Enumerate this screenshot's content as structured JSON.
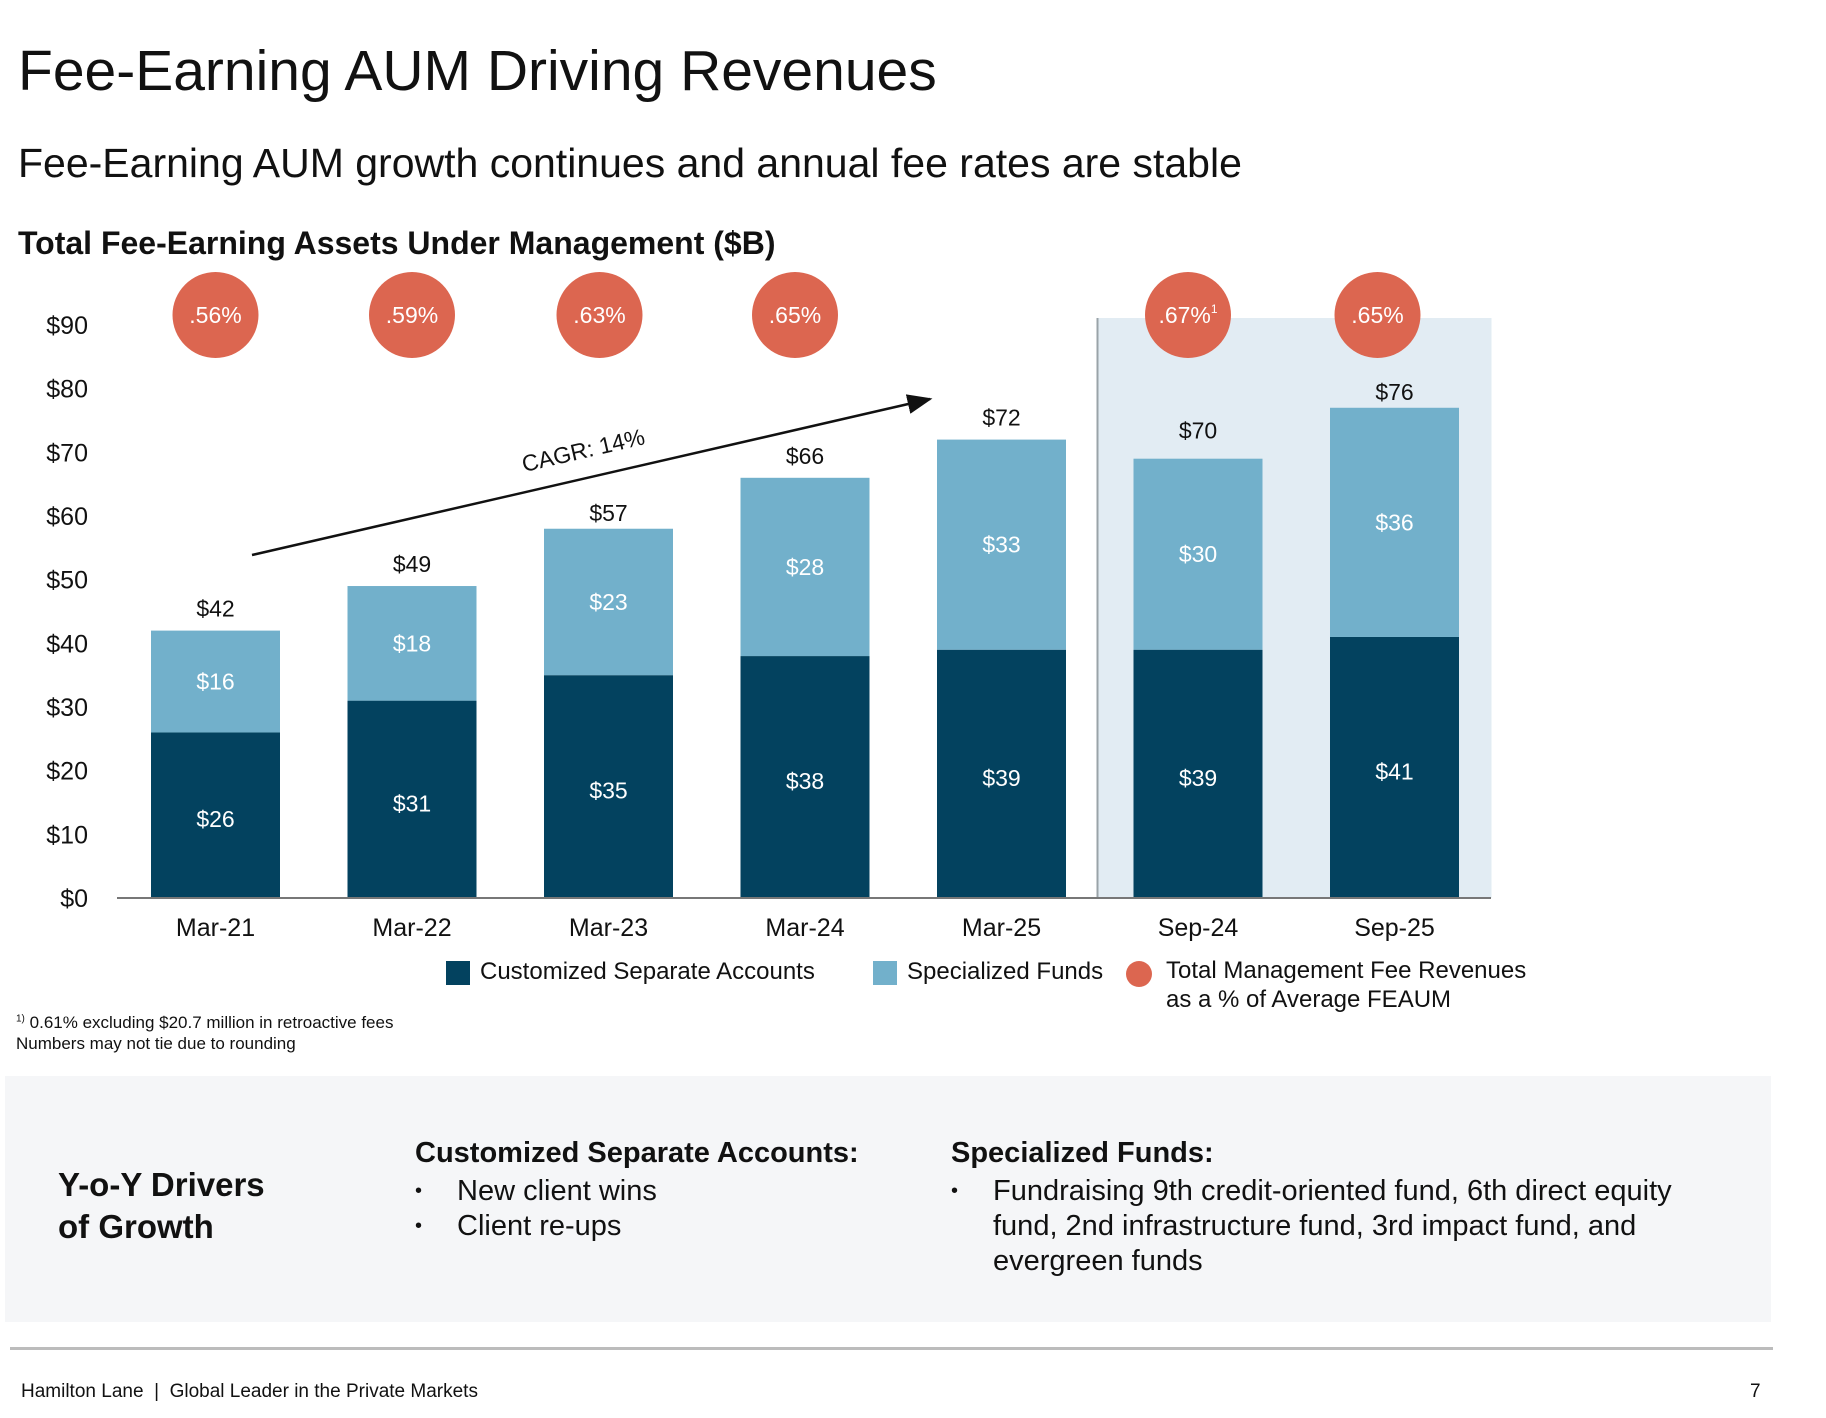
{
  "title": "Fee-Earning AUM Driving Revenues",
  "subtitle": "Fee-Earning AUM growth continues and annual fee rates are stable",
  "chart_data": {
    "type": "bar",
    "title": "Total Fee-Earning Assets Under Management ($B)",
    "categories": [
      "Mar-21",
      "Mar-22",
      "Mar-23",
      "Mar-24",
      "Mar-25",
      "Sep-24",
      "Sep-25"
    ],
    "series": [
      {
        "name": "Customized Separate Accounts",
        "color": "#03425f",
        "values": [
          26,
          31,
          35,
          38,
          39,
          39,
          41
        ],
        "labels": [
          "$26",
          "$31",
          "$35",
          "$38",
          "$39",
          "$39",
          "$41"
        ]
      },
      {
        "name": "Specialized Funds",
        "color": "#72b0cb",
        "values": [
          16,
          18,
          23,
          28,
          33,
          30,
          36
        ],
        "labels": [
          "$16",
          "$18",
          "$23",
          "$28",
          "$33",
          "$30",
          "$36"
        ]
      }
    ],
    "totals": [
      "$42",
      "$49",
      "$57",
      "$66",
      "$72",
      "$70",
      "$76"
    ],
    "total_values": [
      42,
      49,
      57,
      66,
      72,
      70,
      76
    ],
    "fee_rates": {
      "name": "Total Management Fee Revenues as a % of Average FEAUM",
      "name_line1": "Total Management Fee Revenues",
      "name_line2": "as a % of Average FEAUM",
      "color": "#dc6650",
      "labels": [
        ".56%",
        ".59%",
        ".63%",
        ".65%",
        ".67%",
        ".65%"
      ],
      "footnote_marks": [
        "",
        "",
        "",
        "",
        "1",
        ""
      ],
      "category_index": [
        0,
        1,
        2,
        3,
        5,
        6
      ]
    },
    "yticks": [
      "$0",
      "$10",
      "$20",
      "$30",
      "$40",
      "$50",
      "$60",
      "$70",
      "$80",
      "$90"
    ],
    "ylim": [
      0,
      90
    ],
    "annotation": "CAGR: 14%",
    "highlight_categories": [
      "Sep-24",
      "Sep-25"
    ]
  },
  "footnotes": [
    "0.61% excluding $20.7 million in retroactive fees",
    "Numbers may not tie due to rounding"
  ],
  "footnote_mark": "1)",
  "drivers": {
    "heading_line1": "Y-o-Y Drivers",
    "heading_line2": "of Growth",
    "csa": {
      "title": "Customized Separate Accounts:",
      "items": [
        "New client wins",
        "Client re-ups"
      ]
    },
    "sf": {
      "title": "Specialized Funds:",
      "items": [
        "Fundraising 9th credit-oriented fund, 6th direct equity fund, 2nd infrastructure fund, 3rd impact fund, and evergreen funds"
      ]
    }
  },
  "footer": "Hamilton Lane  |  Global Leader in the Private Markets",
  "page_number": "7"
}
